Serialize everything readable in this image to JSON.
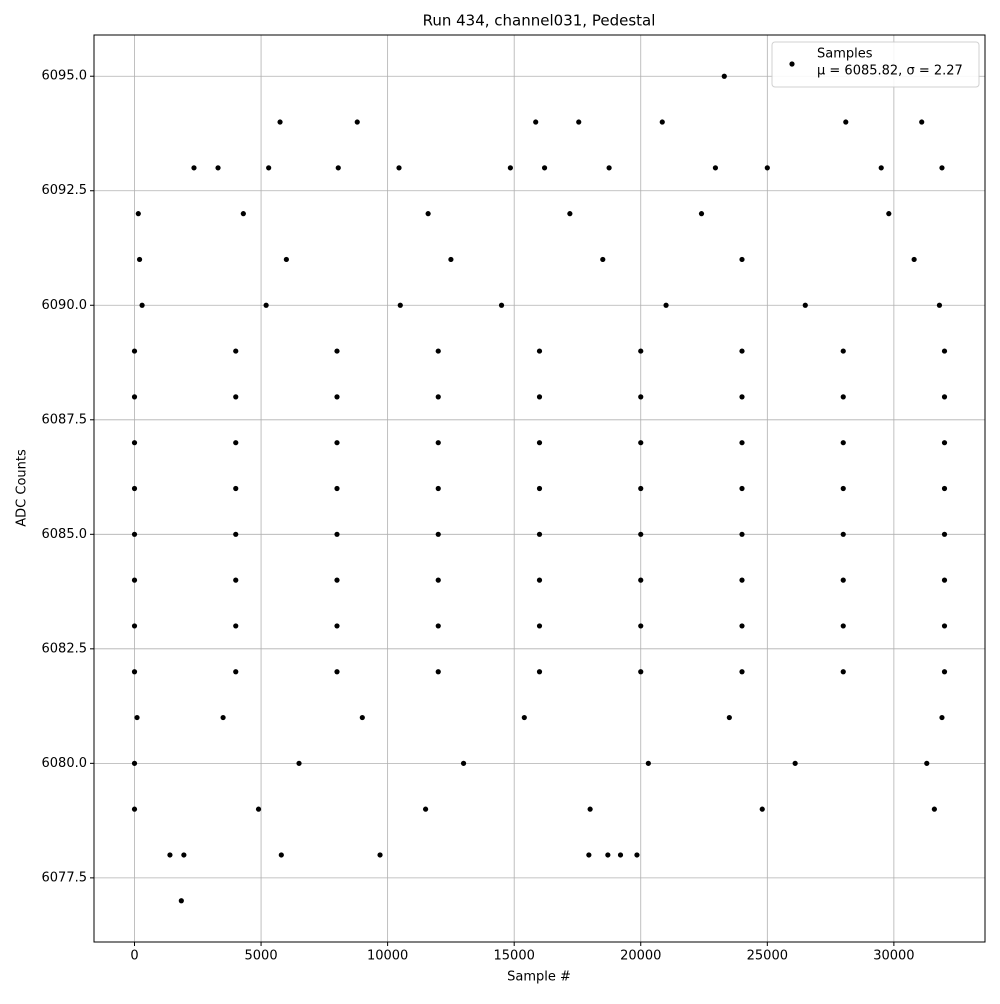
{
  "chart_data": {
    "type": "scatter",
    "title": "Run 434, channel031, Pedestal",
    "x_label": "Sample #",
    "y_label": "ADC Counts",
    "legend_stats": "μ = 6085.82, σ = 2.27",
    "legend_loc": "upper right",
    "grid": true,
    "xlim": [
      -1600,
      33600
    ],
    "xticks": [
      0,
      5000,
      10000,
      15000,
      20000,
      25000,
      30000
    ],
    "ylim": [
      6076.1,
      6095.9
    ],
    "yticks": [
      6077.5,
      {
        "value": 6080,
        "label": "6080.0"
      },
      6082.5,
      {
        "value": 6085,
        "label": "6085.0"
      },
      6087.5,
      {
        "value": 6090,
        "label": "6090.0"
      },
      6092.5,
      {
        "value": 6095,
        "label": "6095.0"
      }
    ],
    "x": [
      0,
      4000,
      8000,
      12000,
      16000,
      20000,
      24000,
      28000,
      32000,
      0,
      4000,
      8000,
      12000,
      16000,
      20000,
      24000,
      28000,
      32000,
      0,
      4000,
      8000,
      12000,
      16000,
      20000,
      24000,
      28000,
      32000,
      0,
      4000,
      8000,
      12000,
      16000,
      20000,
      24000,
      28000,
      32000,
      0,
      4000,
      8000,
      12000,
      16000,
      20000,
      24000,
      28000,
      32000,
      0,
      4000,
      8000,
      12000,
      16000,
      20000,
      24000,
      28000,
      32000,
      0,
      4000,
      8000,
      12000,
      16000,
      20000,
      24000,
      28000,
      32000,
      0,
      4000,
      8000,
      12000,
      16000,
      20000,
      24000,
      28000,
      32000,
      300,
      5200,
      10500,
      14500,
      21000,
      26500,
      31800,
      200,
      6000,
      12500,
      18500,
      24000,
      30800,
      150,
      4300,
      11600,
      17200,
      22400,
      29800,
      100,
      3500,
      9000,
      15400,
      23500,
      31900,
      0,
      6500,
      13000,
      20300,
      26100,
      31300,
      0,
      4900,
      11500,
      18000,
      24800,
      31600,
      2350,
      3300,
      5300,
      8050,
      10450,
      14850,
      16200,
      18750,
      22950,
      25000,
      29500,
      31900,
      5750,
      8800,
      15850,
      17550,
      20850,
      28100,
      31100,
      23300,
      1400,
      1950,
      5800,
      9700,
      17950,
      18700,
      19200,
      19850,
      1850
    ],
    "series": [
      {
        "name": "Samples",
        "color": "#000000",
        "values": [
          6089,
          6089,
          6089,
          6089,
          6089,
          6089,
          6089,
          6089,
          6089,
          6088,
          6088,
          6088,
          6088,
          6088,
          6088,
          6088,
          6088,
          6088,
          6087,
          6087,
          6087,
          6087,
          6087,
          6087,
          6087,
          6087,
          6087,
          6086,
          6086,
          6086,
          6086,
          6086,
          6086,
          6086,
          6086,
          6086,
          6085,
          6085,
          6085,
          6085,
          6085,
          6085,
          6085,
          6085,
          6085,
          6084,
          6084,
          6084,
          6084,
          6084,
          6084,
          6084,
          6084,
          6084,
          6083,
          6083,
          6083,
          6083,
          6083,
          6083,
          6083,
          6083,
          6083,
          6082,
          6082,
          6082,
          6082,
          6082,
          6082,
          6082,
          6082,
          6082,
          6090,
          6090,
          6090,
          6090,
          6090,
          6090,
          6090,
          6091,
          6091,
          6091,
          6091,
          6091,
          6091,
          6092,
          6092,
          6092,
          6092,
          6092,
          6092,
          6081,
          6081,
          6081,
          6081,
          6081,
          6081,
          6080,
          6080,
          6080,
          6080,
          6080,
          6080,
          6079,
          6079,
          6079,
          6079,
          6079,
          6079,
          6093,
          6093,
          6093,
          6093,
          6093,
          6093,
          6093,
          6093,
          6093,
          6093,
          6093,
          6093,
          6094,
          6094,
          6094,
          6094,
          6094,
          6094,
          6094,
          6095,
          6078,
          6078,
          6078,
          6078,
          6078,
          6078,
          6078,
          6078,
          6077
        ]
      }
    ]
  }
}
